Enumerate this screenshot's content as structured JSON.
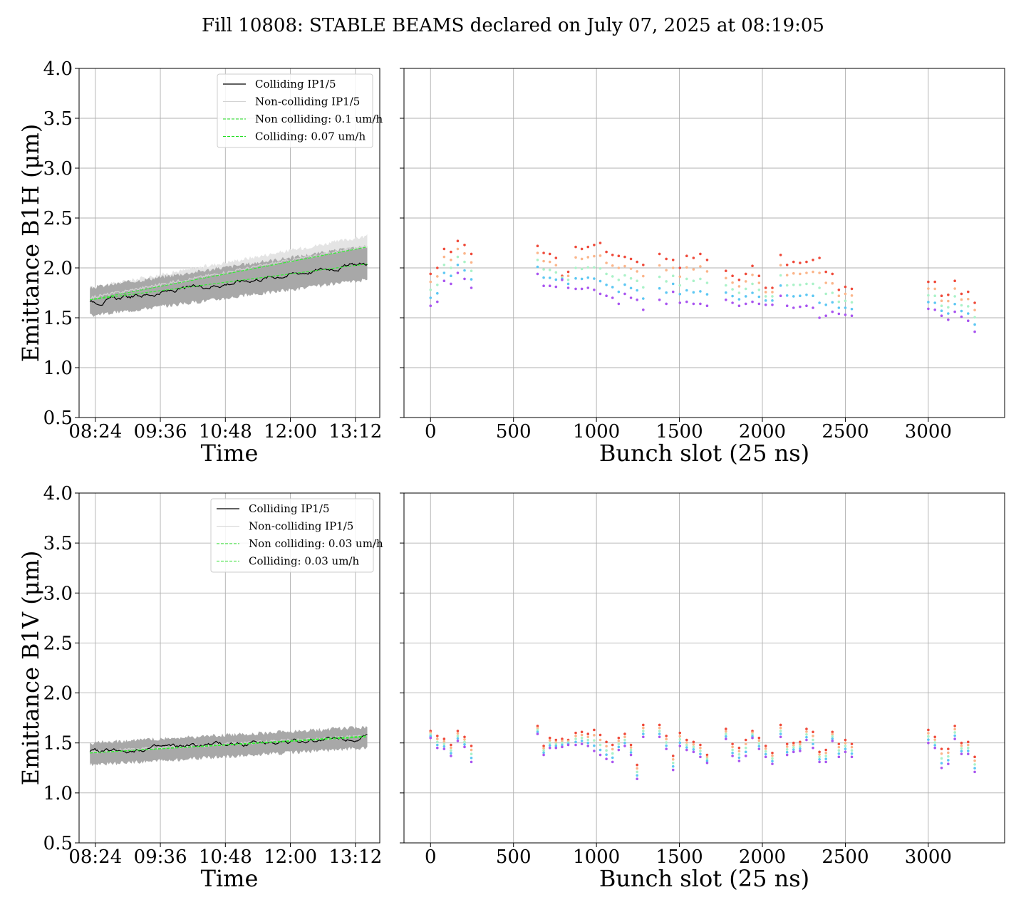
{
  "suptitle": "Fill 10808: STABLE BEAMS declared on July 07, 2025 at 08:19:05",
  "chart_data": [
    {
      "type": "line",
      "id": "b1h_time",
      "ylabel": "Emittance B1H (μm)",
      "xlabel": "Time",
      "ylim": [
        0.5,
        4.0
      ],
      "yticks": [
        "0.5",
        "1.0",
        "1.5",
        "2.0",
        "2.5",
        "3.0",
        "3.5",
        "4.0"
      ],
      "xticks": [
        "08:24",
        "09:36",
        "10:48",
        "12:00",
        "13:12"
      ],
      "xlim_hours": [
        8.1,
        13.65
      ],
      "grid": true,
      "legend_position": "top-right",
      "legend": [
        {
          "label": "Colliding IP1/5",
          "color": "#000000",
          "style": "solid"
        },
        {
          "label": "Non-colliding IP1/5",
          "color": "#d3d3d3",
          "style": "solid"
        },
        {
          "label": "Non colliding: 0.1 um/h",
          "color": "#22dd22",
          "style": "dashed"
        },
        {
          "label": "Colliding: 0.07 um/h",
          "color": "#22dd22",
          "style": "dashed"
        }
      ],
      "series": [
        {
          "name": "Colliding IP1/5",
          "x_start_hours": 8.3,
          "x_end_hours": 13.42,
          "y_start": 1.65,
          "y_end": 2.05,
          "band_low_start": 1.52,
          "band_low_end": 1.88,
          "band_high_start": 1.8,
          "band_high_end": 2.22
        },
        {
          "name": "Non-colliding IP1/5",
          "x_start_hours": 8.3,
          "x_end_hours": 13.42,
          "y_start": 1.7,
          "y_end": 2.22,
          "band_low_start": 1.62,
          "band_low_end": 2.12,
          "band_high_start": 1.8,
          "band_high_end": 2.32
        },
        {
          "name": "Non colliding: 0.1 um/h",
          "x": [
            8.3,
            13.42
          ],
          "y": [
            1.68,
            2.21
          ]
        },
        {
          "name": "Colliding: 0.07 um/h",
          "x": [
            8.3,
            13.42
          ],
          "y": [
            1.68,
            2.04
          ]
        }
      ]
    },
    {
      "type": "scatter",
      "id": "b1h_bunch",
      "xlabel": "Bunch slot (25 ns)",
      "xlim": [
        -160,
        3460
      ],
      "ylim": [
        0.5,
        4.0
      ],
      "xticks": [
        "0",
        "500",
        "1000",
        "1500",
        "2000",
        "2500",
        "3000"
      ],
      "grid": true,
      "colors": [
        "#ef4a3a",
        "#fbb58a",
        "#aaf2c8",
        "#5cc7f3",
        "#a955f0"
      ],
      "groups": [
        {
          "start": 0,
          "count": 7,
          "step": 41,
          "top": [
            1.94,
            2.0,
            2.19,
            2.16,
            2.27,
            2.23,
            2.14
          ],
          "bottom": [
            1.62,
            1.66,
            1.87,
            1.84,
            1.95,
            1.89,
            1.8
          ]
        },
        {
          "start": 645,
          "count": 6,
          "step": 37,
          "top": [
            2.22,
            2.15,
            2.14,
            2.1,
            1.92,
            1.96
          ],
          "bottom": [
            1.94,
            1.82,
            1.82,
            1.81,
            1.88,
            1.8
          ]
        },
        {
          "start": 875,
          "count": 12,
          "step": 37,
          "top": [
            2.21,
            2.19,
            2.21,
            2.23,
            2.25,
            2.16,
            2.13,
            2.12,
            2.11,
            2.09,
            2.06,
            2.03
          ],
          "bottom": [
            1.79,
            1.79,
            1.8,
            1.78,
            1.74,
            1.72,
            1.7,
            1.64,
            1.74,
            1.7,
            1.68,
            1.58
          ]
        },
        {
          "start": 1380,
          "count": 8,
          "step": 41,
          "top": [
            2.14,
            2.09,
            2.08,
            2.0,
            2.12,
            2.1,
            2.14,
            2.08
          ],
          "bottom": [
            1.68,
            1.64,
            1.76,
            1.65,
            1.66,
            1.64,
            1.64,
            1.62
          ]
        },
        {
          "start": 1780,
          "count": 8,
          "step": 40,
          "top": [
            1.97,
            1.92,
            1.88,
            1.94,
            2.02,
            1.92,
            1.8,
            1.8
          ],
          "bottom": [
            1.68,
            1.65,
            1.62,
            1.64,
            1.66,
            1.64,
            1.63,
            1.63
          ]
        },
        {
          "start": 2110,
          "count": 12,
          "step": 39,
          "top": [
            2.13,
            2.03,
            2.06,
            2.05,
            2.06,
            2.08,
            2.1,
            1.96,
            1.94,
            1.78,
            1.81,
            1.79
          ],
          "bottom": [
            1.72,
            1.62,
            1.6,
            1.61,
            1.62,
            1.6,
            1.5,
            1.52,
            1.56,
            1.54,
            1.53,
            1.52
          ]
        },
        {
          "start": 3000,
          "count": 8,
          "step": 40,
          "top": [
            1.86,
            1.86,
            1.72,
            1.73,
            1.87,
            1.74,
            1.76,
            1.65
          ],
          "bottom": [
            1.59,
            1.58,
            1.52,
            1.48,
            1.56,
            1.51,
            1.47,
            1.36
          ]
        }
      ]
    },
    {
      "type": "line",
      "id": "b1v_time",
      "ylabel": "Emittance B1V (μm)",
      "xlabel": "Time",
      "ylim": [
        0.5,
        4.0
      ],
      "yticks": [
        "0.5",
        "1.0",
        "1.5",
        "2.0",
        "2.5",
        "3.0",
        "3.5",
        "4.0"
      ],
      "xticks": [
        "08:24",
        "09:36",
        "10:48",
        "12:00",
        "13:12"
      ],
      "xlim_hours": [
        8.1,
        13.65
      ],
      "grid": true,
      "legend_position": "top-right",
      "legend": [
        {
          "label": "Colliding IP1/5",
          "color": "#000000",
          "style": "solid"
        },
        {
          "label": "Non-colliding IP1/5",
          "color": "#d3d3d3",
          "style": "solid"
        },
        {
          "label": "Non colliding: 0.03 um/h",
          "color": "#22dd22",
          "style": "dashed"
        },
        {
          "label": "Colliding: 0.03 um/h",
          "color": "#22dd22",
          "style": "dashed"
        }
      ],
      "series": [
        {
          "name": "Colliding IP1/5",
          "x_start_hours": 8.3,
          "x_end_hours": 13.42,
          "y_start": 1.41,
          "y_end": 1.56,
          "band_low_start": 1.28,
          "band_low_end": 1.45,
          "band_high_start": 1.5,
          "band_high_end": 1.66
        },
        {
          "name": "Non-colliding IP1/5",
          "x_start_hours": 8.3,
          "x_end_hours": 13.42,
          "y_start": 1.41,
          "y_end": 1.57,
          "band_low_start": 1.36,
          "band_low_end": 1.5,
          "band_high_start": 1.46,
          "band_high_end": 1.62
        },
        {
          "name": "Non colliding: 0.03 um/h",
          "x": [
            8.3,
            13.42
          ],
          "y": [
            1.4,
            1.57
          ]
        },
        {
          "name": "Colliding: 0.03 um/h",
          "x": [
            8.3,
            13.42
          ],
          "y": [
            1.4,
            1.56
          ]
        }
      ]
    },
    {
      "type": "scatter",
      "id": "b1v_bunch",
      "xlabel": "Bunch slot (25 ns)",
      "xlim": [
        -160,
        3460
      ],
      "ylim": [
        0.5,
        4.0
      ],
      "xticks": [
        "0",
        "500",
        "1000",
        "1500",
        "2000",
        "2500",
        "3000"
      ],
      "grid": true,
      "colors": [
        "#ef4a3a",
        "#fbb58a",
        "#aaf2c8",
        "#5cc7f3",
        "#a955f0"
      ],
      "groups": [
        {
          "start": 0,
          "count": 7,
          "step": 41,
          "top": [
            1.62,
            1.57,
            1.54,
            1.48,
            1.62,
            1.56,
            1.47
          ],
          "bottom": [
            1.55,
            1.45,
            1.44,
            1.37,
            1.52,
            1.46,
            1.31
          ]
        },
        {
          "start": 645,
          "count": 6,
          "step": 37,
          "top": [
            1.67,
            1.47,
            1.55,
            1.53,
            1.54,
            1.53
          ],
          "bottom": [
            1.59,
            1.38,
            1.45,
            1.45,
            1.46,
            1.48
          ]
        },
        {
          "start": 875,
          "count": 12,
          "step": 37,
          "top": [
            1.6,
            1.61,
            1.59,
            1.63,
            1.58,
            1.51,
            1.48,
            1.55,
            1.59,
            1.48,
            1.28,
            1.68
          ],
          "bottom": [
            1.48,
            1.49,
            1.47,
            1.42,
            1.38,
            1.34,
            1.31,
            1.43,
            1.47,
            1.38,
            1.14,
            1.56
          ]
        },
        {
          "start": 1380,
          "count": 8,
          "step": 41,
          "top": [
            1.68,
            1.57,
            1.37,
            1.6,
            1.53,
            1.51,
            1.48,
            1.38
          ],
          "bottom": [
            1.56,
            1.44,
            1.23,
            1.47,
            1.43,
            1.41,
            1.36,
            1.3
          ]
        },
        {
          "start": 1780,
          "count": 8,
          "step": 40,
          "top": [
            1.64,
            1.49,
            1.45,
            1.53,
            1.62,
            1.55,
            1.47,
            1.4
          ],
          "bottom": [
            1.54,
            1.37,
            1.32,
            1.37,
            1.55,
            1.44,
            1.36,
            1.29
          ]
        },
        {
          "start": 2110,
          "count": 12,
          "step": 39,
          "top": [
            1.68,
            1.49,
            1.5,
            1.51,
            1.64,
            1.61,
            1.41,
            1.43,
            1.61,
            1.49,
            1.53,
            1.49
          ],
          "bottom": [
            1.56,
            1.38,
            1.41,
            1.42,
            1.53,
            1.45,
            1.31,
            1.31,
            1.52,
            1.36,
            1.41,
            1.36
          ]
        },
        {
          "start": 3000,
          "count": 8,
          "step": 40,
          "top": [
            1.63,
            1.56,
            1.44,
            1.44,
            1.67,
            1.5,
            1.51,
            1.36
          ],
          "bottom": [
            1.5,
            1.45,
            1.25,
            1.29,
            1.54,
            1.39,
            1.39,
            1.21
          ]
        }
      ]
    }
  ]
}
